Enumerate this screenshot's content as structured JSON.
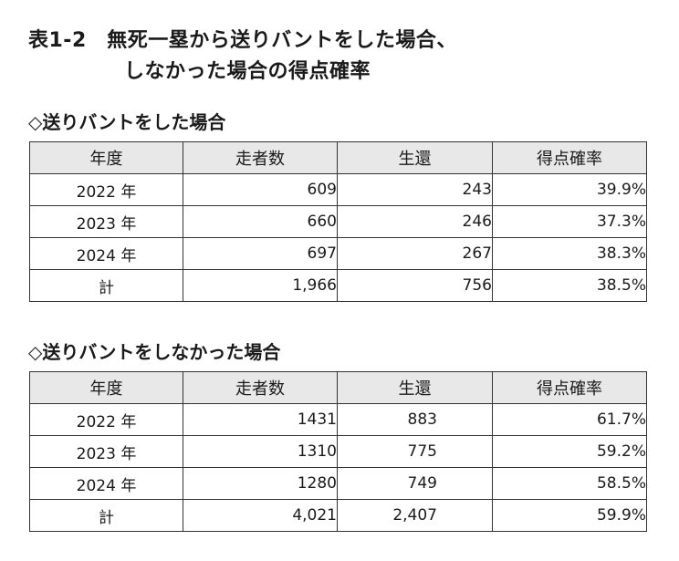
{
  "title": {
    "line1": "表1‐2　無死一塁から送りバントをした場合、",
    "line2": "しなかった場合の得点確率"
  },
  "tables": [
    {
      "heading": "◇送りバントをした場合",
      "headers": [
        "年度",
        "走者数",
        "生還",
        "得点確率"
      ],
      "rows": [
        {
          "year": "2022 年",
          "runners": "609",
          "home": "243",
          "rate": "39.9%"
        },
        {
          "year": "2023 年",
          "runners": "660",
          "home": "246",
          "rate": "37.3%"
        },
        {
          "year": "2024 年",
          "runners": "697",
          "home": "267",
          "rate": "38.3%"
        },
        {
          "year": "計",
          "runners": "1,966",
          "home": "756",
          "rate": "38.5%"
        }
      ]
    },
    {
      "heading": "◇送りバントをしなかった場合",
      "headers": [
        "年度",
        "走者数",
        "生還",
        "得点確率"
      ],
      "rows": [
        {
          "year": "2022 年",
          "runners": "1431",
          "home": "883",
          "rate": "61.7%"
        },
        {
          "year": "2023 年",
          "runners": "1310",
          "home": "775",
          "rate": "59.2%"
        },
        {
          "year": "2024 年",
          "runners": "1280",
          "home": "749",
          "rate": "58.5%"
        },
        {
          "year": "計",
          "runners": "4,021",
          "home": "2,407",
          "rate": "59.9%"
        }
      ]
    }
  ]
}
